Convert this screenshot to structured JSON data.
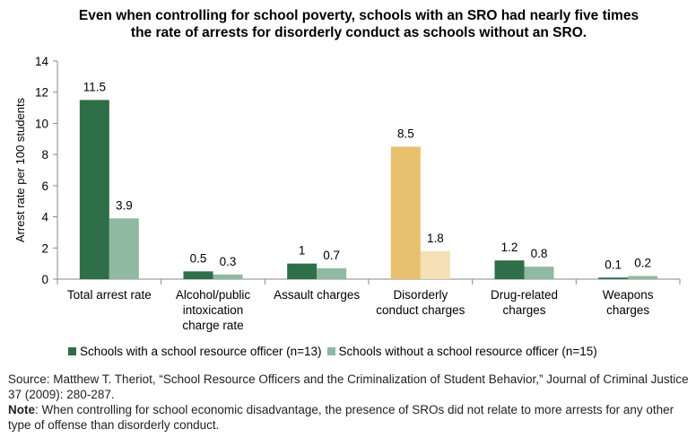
{
  "chart_data": {
    "type": "bar",
    "title": "Even when controlling for school poverty, schools with an SRO had nearly five times the rate of arrests for disorderly conduct as schools without an SRO.",
    "ylabel": "Arrest rate per 100 students",
    "ylim": [
      0,
      14
    ],
    "yticks": [
      0,
      2,
      4,
      6,
      8,
      10,
      12,
      14
    ],
    "grid": false,
    "legend_position": "bottom",
    "categories": [
      [
        "Total arrest rate"
      ],
      [
        "Alcohol/public",
        "intoxication",
        "charge rate"
      ],
      [
        "Assault charges"
      ],
      [
        "Disorderly",
        "conduct charges"
      ],
      [
        "Drug-related",
        "charges"
      ],
      [
        "Weapons",
        "charges"
      ]
    ],
    "series": [
      {
        "name": "Schools with a school resource officer (n=13)",
        "values": [
          11.5,
          0.5,
          1,
          8.5,
          1.2,
          0.1
        ],
        "labels": [
          "11.5",
          "0.5",
          "1",
          "8.5",
          "1.2",
          "0.1"
        ],
        "color": "#2e6e48",
        "highlight_color": "#e8c06e"
      },
      {
        "name": "Schools without a school resource officer (n=15)",
        "values": [
          3.9,
          0.3,
          0.7,
          1.8,
          0.8,
          0.2
        ],
        "labels": [
          "3.9",
          "0.3",
          "0.7",
          "1.8",
          "0.8",
          "0.2"
        ],
        "color": "#8fb9a0",
        "highlight_color": "#f5dfb5"
      }
    ],
    "highlight_category_index": 3
  },
  "footer": {
    "source_text": "Source: Matthew T. Theriot, “School Resource Officers and the Criminalization of Student Behavior,” Journal of Criminal Justice 37 (2009): 280-287.",
    "note_label": "Note",
    "note_text": ": When controlling for school economic disadvantage, the presence of SROs did not relate to more arrests for any other type of offense than disorderly conduct."
  }
}
